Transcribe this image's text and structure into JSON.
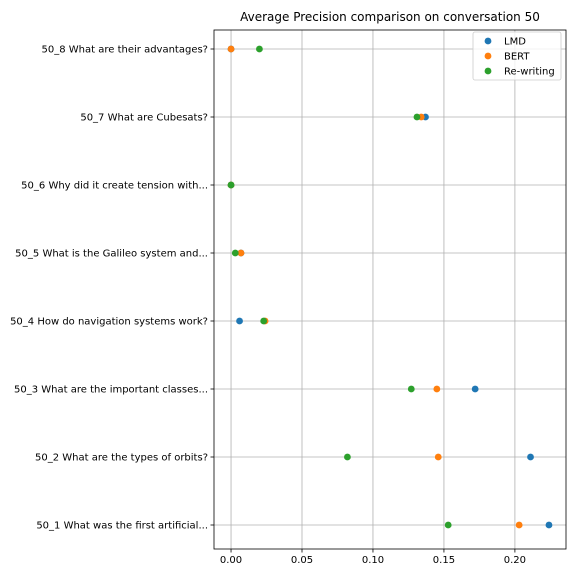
{
  "chart_data": {
    "type": "scatter",
    "title": "Average Precision comparison on conversation 50",
    "xlabel": "",
    "ylabel": "",
    "xlim": [
      -0.012,
      0.236
    ],
    "x_ticks": [
      "0.00",
      "0.05",
      "0.10",
      "0.15",
      "0.20"
    ],
    "x_tick_values": [
      0.0,
      0.05,
      0.1,
      0.15,
      0.2
    ],
    "categories": [
      "50_1 What was the first artificial...",
      "50_2 What are the types of orbits?",
      "50_3 What are the important classes...",
      "50_4 How do navigation systems work?",
      "50_5 What is the Galileo system and...",
      "50_6 Why did it create tension with...",
      "50_7 What are Cubesats?",
      "50_8 What are their advantages?"
    ],
    "grid": true,
    "legend_position": "top-right",
    "series": [
      {
        "name": "LMD",
        "color": "#1f77b4",
        "values": [
          0.224,
          0.211,
          0.172,
          0.006,
          0.007,
          0.0,
          0.137,
          0.0
        ]
      },
      {
        "name": "BERT",
        "color": "#ff7f0e",
        "values": [
          0.203,
          0.146,
          0.145,
          0.024,
          0.007,
          0.0,
          0.134,
          0.0
        ]
      },
      {
        "name": "Re-writing",
        "color": "#2ca02c",
        "values": [
          0.153,
          0.082,
          0.127,
          0.023,
          0.003,
          0.0,
          0.131,
          0.02
        ]
      }
    ]
  }
}
